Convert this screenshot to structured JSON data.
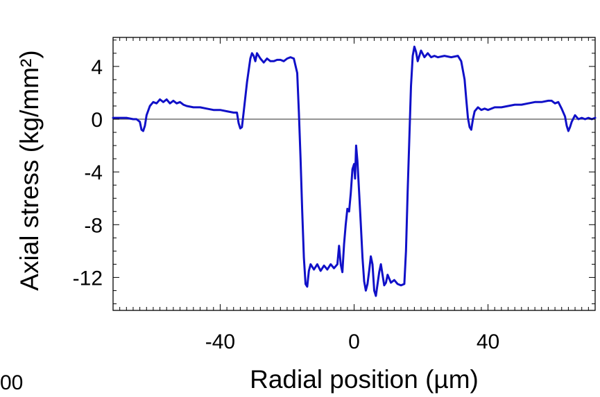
{
  "chart_data": {
    "type": "line",
    "title": "",
    "xlabel": "Radial position (µm)",
    "ylabel": "Axial stress (kg/mm²)",
    "xlim": [
      -72,
      72
    ],
    "ylim": [
      -14.5,
      6.2
    ],
    "xticks": [
      -40,
      0,
      40
    ],
    "yticks": [
      4,
      0,
      -4,
      -8,
      -12
    ],
    "x_tick_labels": [
      "-40",
      "0",
      "40"
    ],
    "y_tick_labels": [
      "4",
      "0",
      "-4",
      "-8",
      "-12"
    ],
    "zero_line": true,
    "grid": false,
    "colors": {
      "series": "#1010c8",
      "zero_line": "#555555",
      "axes": "#000000"
    },
    "series": [
      {
        "name": "",
        "points": [
          [
            -72,
            0.1
          ],
          [
            -70,
            0.1
          ],
          [
            -68,
            0.1
          ],
          [
            -66,
            0.0
          ],
          [
            -65,
            0.0
          ],
          [
            -64,
            -0.2
          ],
          [
            -63.5,
            -0.8
          ],
          [
            -63,
            -0.9
          ],
          [
            -62.5,
            -0.5
          ],
          [
            -62,
            0.3
          ],
          [
            -61,
            1.0
          ],
          [
            -60,
            1.3
          ],
          [
            -59,
            1.2
          ],
          [
            -58,
            1.5
          ],
          [
            -57,
            1.3
          ],
          [
            -56,
            1.5
          ],
          [
            -55,
            1.2
          ],
          [
            -54,
            1.4
          ],
          [
            -53,
            1.2
          ],
          [
            -52,
            1.3
          ],
          [
            -51,
            1.1
          ],
          [
            -50,
            1.0
          ],
          [
            -48,
            0.9
          ],
          [
            -46,
            0.9
          ],
          [
            -44,
            0.8
          ],
          [
            -42,
            0.7
          ],
          [
            -40,
            0.7
          ],
          [
            -38,
            0.6
          ],
          [
            -36,
            0.5
          ],
          [
            -35,
            0.5
          ],
          [
            -34.5,
            -0.3
          ],
          [
            -34,
            -0.7
          ],
          [
            -33.5,
            -0.6
          ],
          [
            -33,
            0.5
          ],
          [
            -32,
            2.8
          ],
          [
            -31,
            4.6
          ],
          [
            -30.5,
            5.0
          ],
          [
            -30,
            4.8
          ],
          [
            -29.5,
            4.4
          ],
          [
            -29,
            5.0
          ],
          [
            -28,
            4.6
          ],
          [
            -27,
            4.3
          ],
          [
            -26,
            4.6
          ],
          [
            -25,
            4.4
          ],
          [
            -24,
            4.4
          ],
          [
            -23,
            4.5
          ],
          [
            -22,
            4.5
          ],
          [
            -21,
            4.4
          ],
          [
            -20,
            4.6
          ],
          [
            -19,
            4.7
          ],
          [
            -18,
            4.6
          ],
          [
            -17,
            3.5
          ],
          [
            -16.5,
            0.5
          ],
          [
            -16,
            -3.0
          ],
          [
            -15.5,
            -7.0
          ],
          [
            -15,
            -10.5
          ],
          [
            -14.5,
            -12.5
          ],
          [
            -14,
            -12.7
          ],
          [
            -13.5,
            -11.5
          ],
          [
            -13,
            -11.0
          ],
          [
            -12,
            -11.4
          ],
          [
            -11,
            -11.0
          ],
          [
            -10,
            -11.5
          ],
          [
            -9,
            -11.1
          ],
          [
            -8,
            -11.4
          ],
          [
            -7,
            -11.0
          ],
          [
            -6,
            -11.3
          ],
          [
            -5,
            -11.0
          ],
          [
            -4.5,
            -9.6
          ],
          [
            -4,
            -11.0
          ],
          [
            -3.5,
            -11.6
          ],
          [
            -3,
            -9.5
          ],
          [
            -2.5,
            -8.0
          ],
          [
            -2,
            -6.8
          ],
          [
            -1.5,
            -7.0
          ],
          [
            -1,
            -5.6
          ],
          [
            -0.5,
            -3.8
          ],
          [
            0,
            -3.4
          ],
          [
            0.3,
            -4.5
          ],
          [
            0.6,
            -2.0
          ],
          [
            1,
            -3.2
          ],
          [
            1.5,
            -5.5
          ],
          [
            2,
            -8.0
          ],
          [
            2.5,
            -10.5
          ],
          [
            3,
            -12.3
          ],
          [
            3.5,
            -13.0
          ],
          [
            4,
            -12.5
          ],
          [
            4.5,
            -11.5
          ],
          [
            5,
            -10.4
          ],
          [
            5.5,
            -11.0
          ],
          [
            6,
            -13.0
          ],
          [
            6.5,
            -13.4
          ],
          [
            7,
            -12.5
          ],
          [
            7.5,
            -11.6
          ],
          [
            8,
            -11.0
          ],
          [
            8.5,
            -11.8
          ],
          [
            9,
            -12.6
          ],
          [
            9.5,
            -12.4
          ],
          [
            10,
            -11.8
          ],
          [
            11,
            -12.4
          ],
          [
            12,
            -12.2
          ],
          [
            13,
            -12.5
          ],
          [
            14,
            -12.6
          ],
          [
            15,
            -12.5
          ],
          [
            15.5,
            -10.0
          ],
          [
            16,
            -5.5
          ],
          [
            16.5,
            -1.5
          ],
          [
            17,
            2.5
          ],
          [
            17.5,
            4.8
          ],
          [
            18,
            5.5
          ],
          [
            18.5,
            5.1
          ],
          [
            19,
            4.4
          ],
          [
            19.5,
            4.8
          ],
          [
            20,
            5.2
          ],
          [
            21,
            4.7
          ],
          [
            22,
            5.0
          ],
          [
            23,
            4.7
          ],
          [
            24,
            4.8
          ],
          [
            25,
            4.7
          ],
          [
            27,
            4.8
          ],
          [
            29,
            4.7
          ],
          [
            31,
            4.8
          ],
          [
            32,
            4.4
          ],
          [
            33,
            3.0
          ],
          [
            33.5,
            1.5
          ],
          [
            34,
            0.1
          ],
          [
            34.5,
            -0.6
          ],
          [
            35,
            -0.8
          ],
          [
            35.5,
            0.0
          ],
          [
            36,
            0.6
          ],
          [
            37,
            0.9
          ],
          [
            38,
            0.7
          ],
          [
            39,
            0.8
          ],
          [
            40,
            0.7
          ],
          [
            42,
            0.9
          ],
          [
            44,
            0.9
          ],
          [
            46,
            1.0
          ],
          [
            48,
            1.1
          ],
          [
            50,
            1.1
          ],
          [
            52,
            1.2
          ],
          [
            54,
            1.3
          ],
          [
            56,
            1.3
          ],
          [
            58,
            1.4
          ],
          [
            59,
            1.4
          ],
          [
            60,
            1.2
          ],
          [
            61,
            1.3
          ],
          [
            62,
            0.8
          ],
          [
            63,
            0.2
          ],
          [
            63.5,
            -0.5
          ],
          [
            64,
            -0.9
          ],
          [
            64.5,
            -0.6
          ],
          [
            65,
            -0.2
          ],
          [
            66,
            0.3
          ],
          [
            67,
            0.0
          ],
          [
            68,
            0.1
          ],
          [
            69,
            0.0
          ],
          [
            70,
            0.1
          ],
          [
            71,
            0.0
          ],
          [
            72,
            0.1
          ]
        ]
      }
    ]
  },
  "fragments": {
    "left_edge_text": "00"
  }
}
